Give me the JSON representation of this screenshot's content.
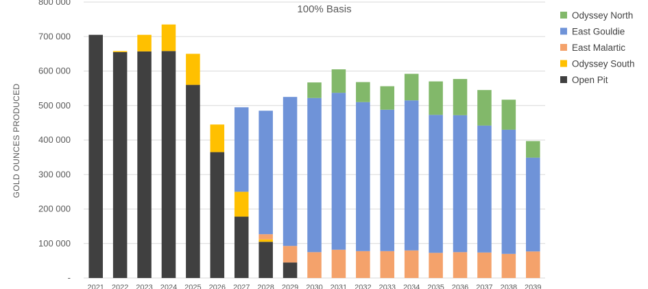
{
  "chart_data": {
    "type": "bar",
    "stacked": true,
    "title": "100% Basis",
    "ylabel": "GOLD OUNCES PRODUCED",
    "xlabel": "",
    "ylim": [
      0,
      800000
    ],
    "yticks": [
      0,
      100000,
      200000,
      300000,
      400000,
      500000,
      600000,
      700000,
      800000
    ],
    "ytick_labels": [
      "-",
      "100 000",
      "200 000",
      "300 000",
      "400 000",
      "500 000",
      "600 000",
      "700 000",
      "800 000"
    ],
    "grid": true,
    "legend_position": "right",
    "categories": [
      "2021",
      "2022",
      "2023",
      "2024",
      "2025",
      "2026",
      "2027",
      "2028",
      "2029",
      "2030",
      "2031",
      "2032",
      "2033",
      "2034",
      "2035",
      "2036",
      "2037",
      "2038",
      "2039"
    ],
    "series": [
      {
        "name": "Open Pit",
        "color": "#404040",
        "values": [
          705000,
          655000,
          657000,
          658000,
          560000,
          365000,
          178000,
          105000,
          45000,
          0,
          0,
          0,
          0,
          0,
          0,
          0,
          0,
          0,
          0
        ]
      },
      {
        "name": "Odyssey South",
        "color": "#FFC000",
        "values": [
          0,
          3000,
          48000,
          77000,
          90000,
          80000,
          72000,
          7000,
          0,
          0,
          0,
          0,
          0,
          0,
          0,
          0,
          0,
          0,
          0
        ]
      },
      {
        "name": "East Malartic",
        "color": "#F4A26B",
        "values": [
          0,
          0,
          0,
          0,
          0,
          0,
          0,
          15000,
          48000,
          75000,
          82000,
          78000,
          78000,
          80000,
          73000,
          75000,
          74000,
          70000,
          77000
        ]
      },
      {
        "name": "East Gouldie",
        "color": "#6F93D8",
        "values": [
          0,
          0,
          0,
          0,
          0,
          0,
          245000,
          358000,
          432000,
          447000,
          455000,
          432000,
          410000,
          435000,
          400000,
          397000,
          368000,
          360000,
          272000
        ]
      },
      {
        "name": "Odyssey North",
        "color": "#82B86A",
        "values": [
          0,
          0,
          0,
          0,
          0,
          0,
          0,
          0,
          0,
          45000,
          68000,
          58000,
          68000,
          77000,
          97000,
          105000,
          103000,
          87000,
          48000
        ]
      }
    ],
    "legend_order": [
      "Odyssey North",
      "East Gouldie",
      "East Malartic",
      "Odyssey South",
      "Open Pit"
    ]
  }
}
